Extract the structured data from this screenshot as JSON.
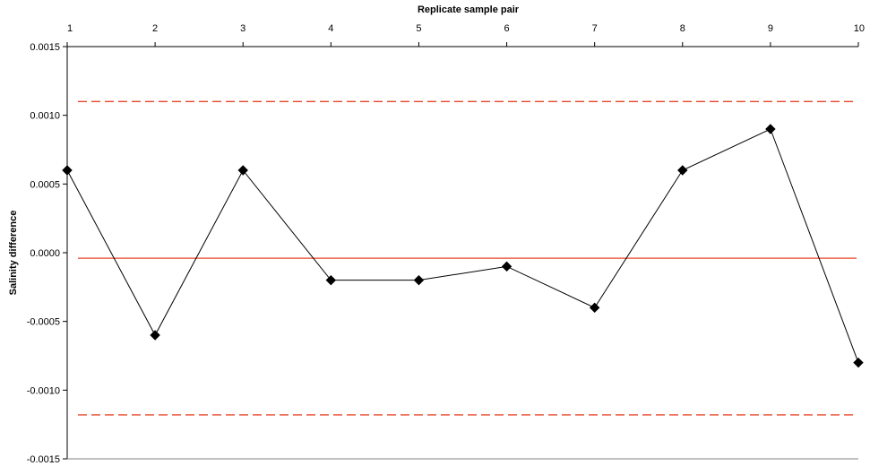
{
  "chart_data": {
    "type": "line",
    "title": "",
    "xlabel": "Replicate sample pair",
    "ylabel": "Salinity difference",
    "x_axis_position": "top",
    "x": [
      1,
      2,
      3,
      4,
      5,
      6,
      7,
      8,
      9,
      10
    ],
    "x_tick_labels": [
      "1",
      "2",
      "3",
      "4",
      "5",
      "6",
      "7",
      "8",
      "9",
      "10"
    ],
    "y_tick_values": [
      0.0015,
      0.001,
      0.0005,
      0.0,
      -0.0005,
      -0.001,
      -0.0015
    ],
    "y_tick_labels": [
      "0.0015",
      "0.0010",
      "0.0005",
      "0.0000",
      "-0.0005",
      "-0.0010",
      "-0.0015"
    ],
    "xlim": [
      1,
      10
    ],
    "ylim": [
      -0.0015,
      0.0015
    ],
    "grid": false,
    "legend": "none",
    "series": [
      {
        "values": [
          0.0006,
          -0.0006,
          0.0006,
          -0.0002,
          -0.0002,
          -0.0001,
          -0.0004,
          0.0006,
          0.0009,
          -0.0008
        ],
        "color": "#000000",
        "marker": "diamond"
      }
    ],
    "reference_lines": [
      {
        "y": 0.0011,
        "style": "dashed",
        "color": "#e8462a"
      },
      {
        "y": -4e-05,
        "style": "solid",
        "color": "#e8462a"
      },
      {
        "y": -0.00118,
        "style": "dashed",
        "color": "#e8462a"
      }
    ]
  }
}
